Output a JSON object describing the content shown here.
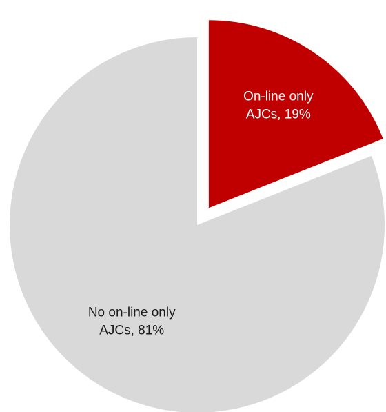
{
  "chart_data": {
    "type": "pie",
    "title": "",
    "slices": [
      {
        "label_line1": "On-line only",
        "label_line2": "AJCs, 19%",
        "value": 19,
        "color": "#c00000",
        "label_color": "#ffffff",
        "exploded": true
      },
      {
        "label_line1": "No on-line only",
        "label_line2": "AJCs, 81%",
        "value": 81,
        "color": "#d9d9d9",
        "label_color": "#1a1a1a",
        "exploded": false
      }
    ],
    "start_angle": "12 o'clock",
    "direction": "clockwise",
    "legend": "none"
  }
}
